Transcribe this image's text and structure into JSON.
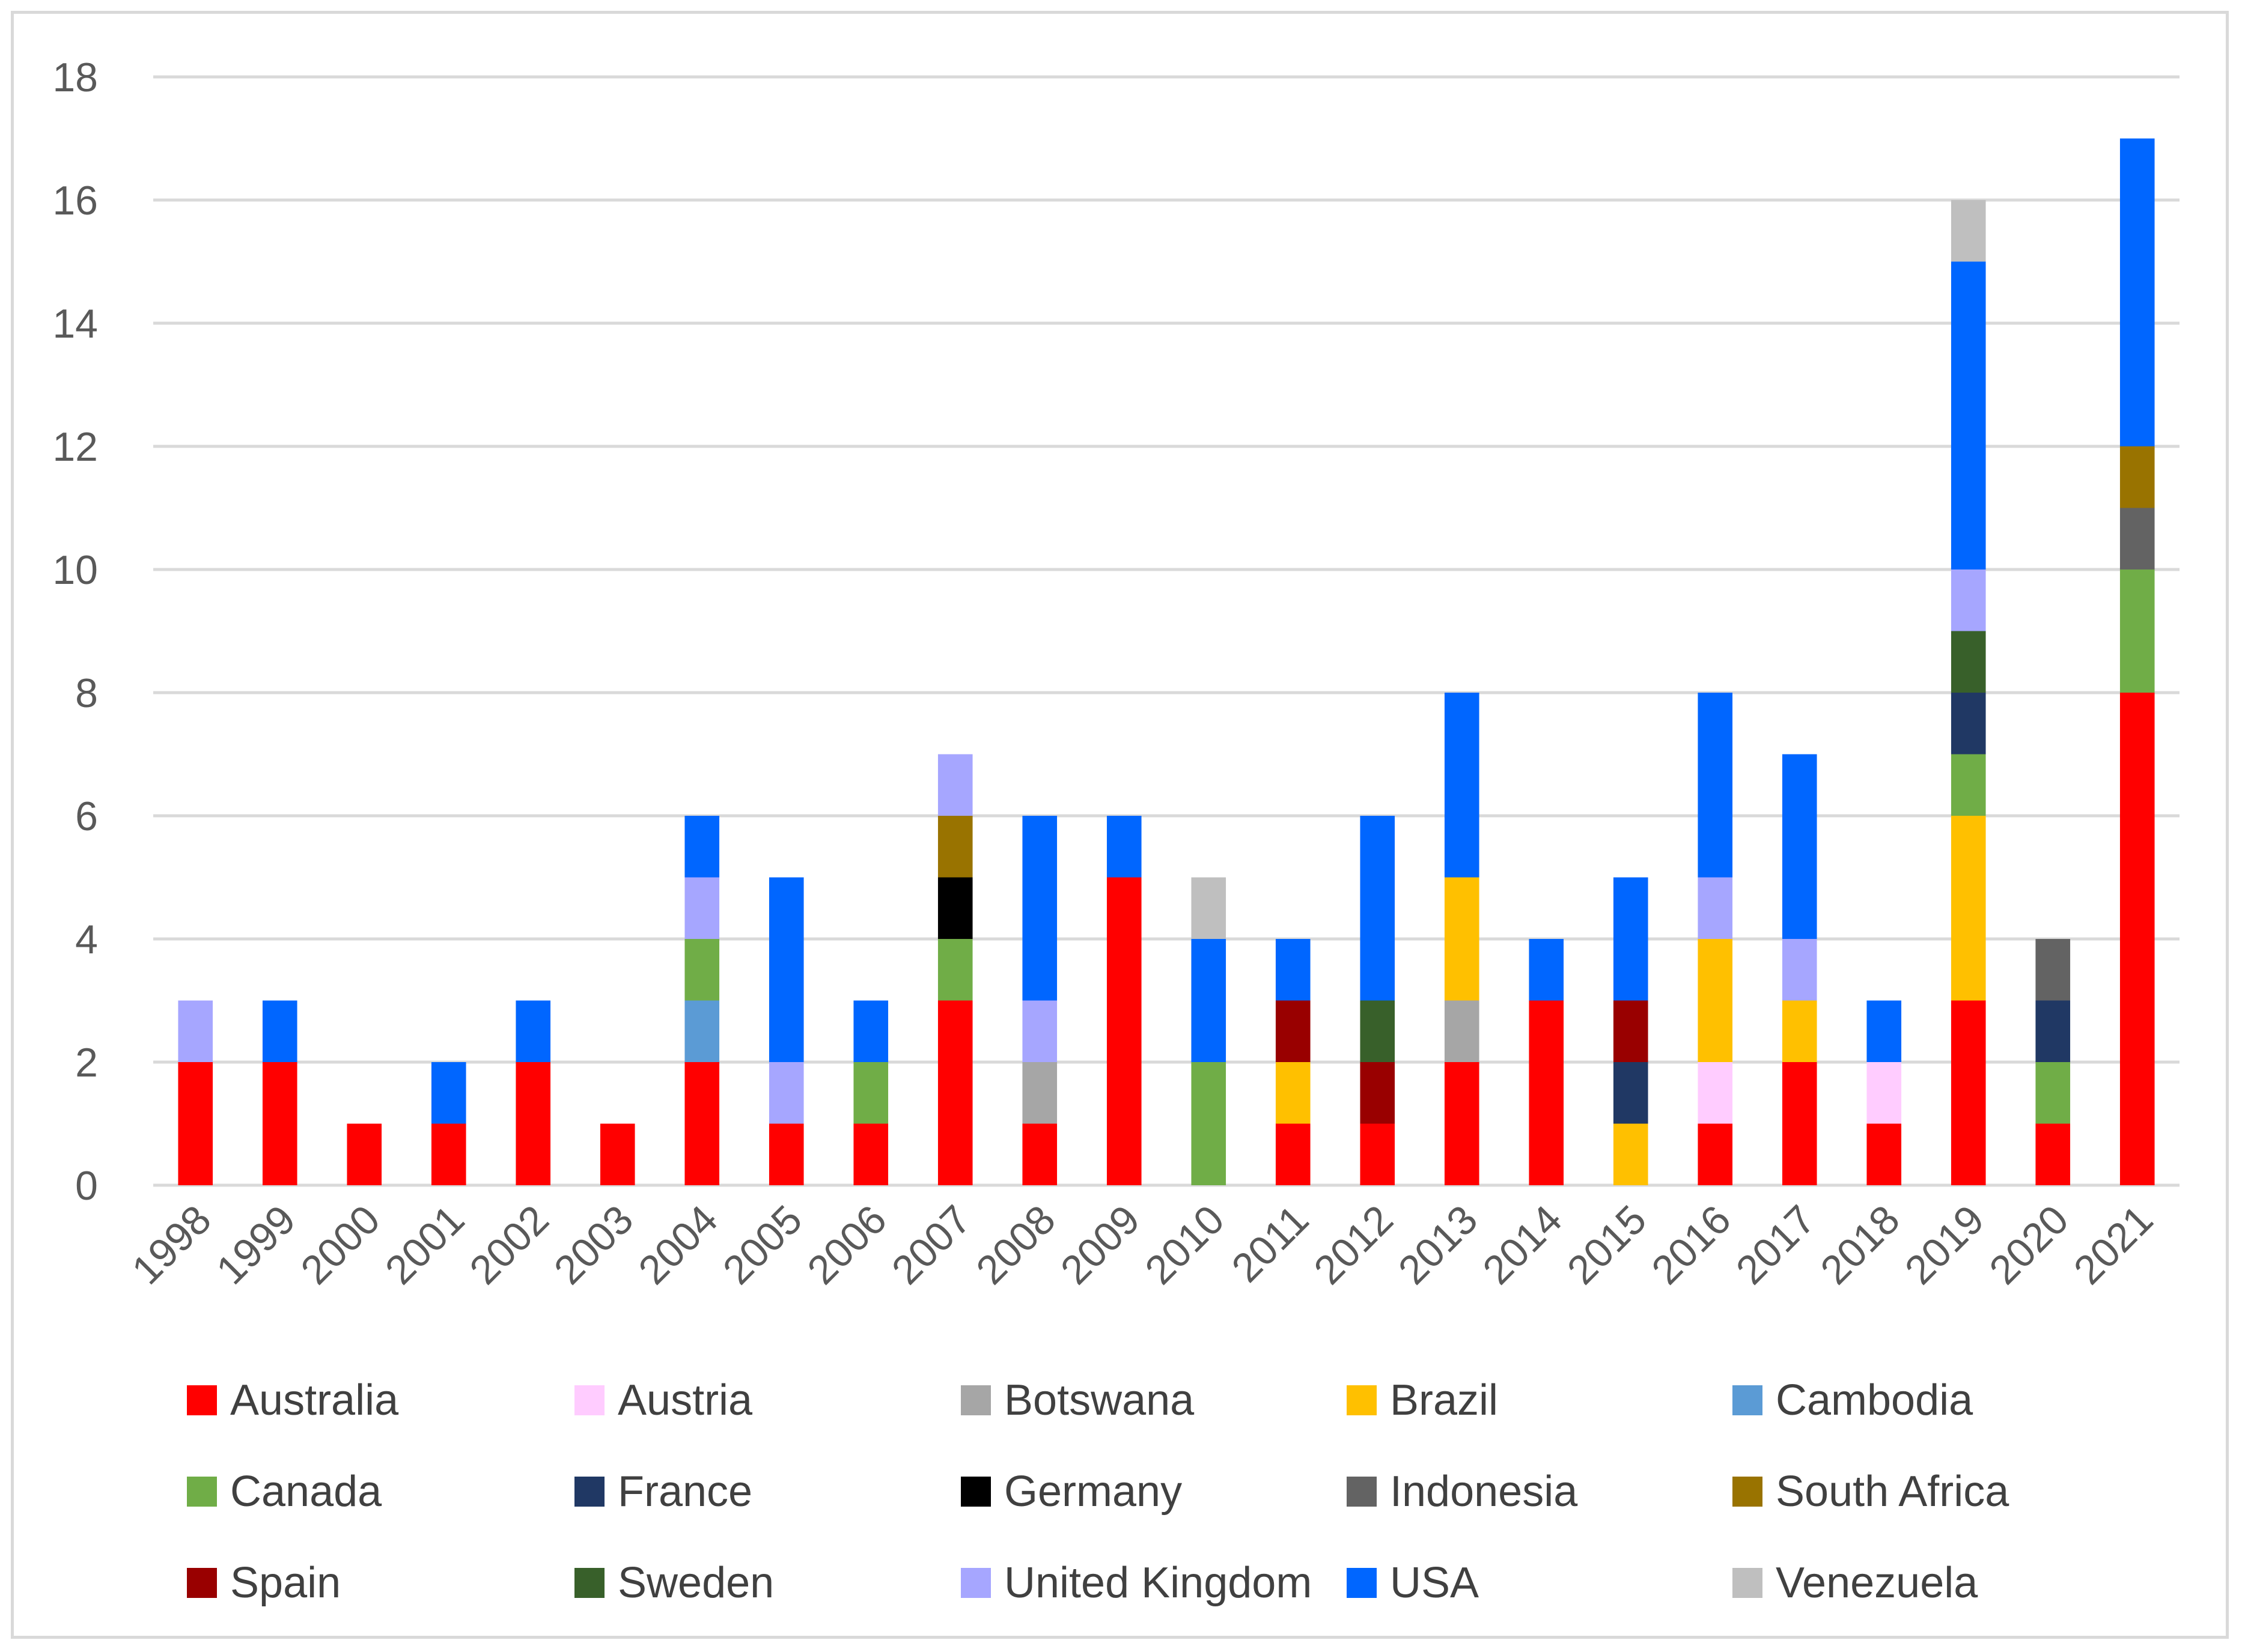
{
  "chart_data": {
    "type": "bar",
    "stacked": true,
    "title": "",
    "xlabel": "",
    "ylabel": "",
    "ylim": [
      0,
      18
    ],
    "yticks": [
      0,
      2,
      4,
      6,
      8,
      10,
      12,
      14,
      16,
      18
    ],
    "grid": true,
    "legend_position": "bottom",
    "categories": [
      "1998",
      "1999",
      "2000",
      "2001",
      "2002",
      "2003",
      "2004",
      "2005",
      "2006",
      "2007",
      "2008",
      "2009",
      "2010",
      "2011",
      "2012",
      "2013",
      "2014",
      "2015",
      "2016",
      "2017",
      "2018",
      "2019",
      "2020",
      "2021"
    ],
    "series": [
      {
        "name": "Australia",
        "color": "#ff0000",
        "values": [
          2,
          2,
          1,
          1,
          2,
          1,
          2,
          1,
          1,
          3,
          1,
          5,
          0,
          1,
          1,
          2,
          3,
          0,
          1,
          2,
          1,
          3,
          1,
          8
        ]
      },
      {
        "name": "Austria",
        "color": "#ffccff",
        "values": [
          0,
          0,
          0,
          0,
          0,
          0,
          0,
          0,
          0,
          0,
          0,
          0,
          0,
          0,
          0,
          0,
          0,
          0,
          1,
          0,
          1,
          0,
          0,
          0
        ]
      },
      {
        "name": "Botswana",
        "color": "#a6a6a6",
        "values": [
          0,
          0,
          0,
          0,
          0,
          0,
          0,
          0,
          0,
          0,
          1,
          0,
          0,
          0,
          0,
          1,
          0,
          0,
          0,
          0,
          0,
          0,
          0,
          0
        ]
      },
      {
        "name": "Brazil",
        "color": "#ffc000",
        "values": [
          0,
          0,
          0,
          0,
          0,
          0,
          0,
          0,
          0,
          0,
          0,
          0,
          0,
          1,
          0,
          2,
          0,
          1,
          2,
          1,
          0,
          3,
          0,
          0
        ]
      },
      {
        "name": "Cambodia",
        "color": "#5b9bd5",
        "values": [
          0,
          0,
          0,
          0,
          0,
          0,
          1,
          0,
          0,
          0,
          0,
          0,
          0,
          0,
          0,
          0,
          0,
          0,
          0,
          0,
          0,
          0,
          0,
          0
        ]
      },
      {
        "name": "Canada",
        "color": "#70ad47",
        "values": [
          0,
          0,
          0,
          0,
          0,
          0,
          1,
          0,
          1,
          1,
          0,
          0,
          2,
          0,
          0,
          0,
          0,
          0,
          0,
          0,
          0,
          1,
          1,
          2
        ]
      },
      {
        "name": "France",
        "color": "#203864",
        "values": [
          0,
          0,
          0,
          0,
          0,
          0,
          0,
          0,
          0,
          0,
          0,
          0,
          0,
          0,
          0,
          0,
          0,
          1,
          0,
          0,
          0,
          1,
          1,
          0
        ]
      },
      {
        "name": "Germany",
        "color": "#000000",
        "values": [
          0,
          0,
          0,
          0,
          0,
          0,
          0,
          0,
          0,
          1,
          0,
          0,
          0,
          0,
          0,
          0,
          0,
          0,
          0,
          0,
          0,
          0,
          0,
          0
        ]
      },
      {
        "name": "Indonesia",
        "color": "#636363",
        "values": [
          0,
          0,
          0,
          0,
          0,
          0,
          0,
          0,
          0,
          0,
          0,
          0,
          0,
          0,
          0,
          0,
          0,
          0,
          0,
          0,
          0,
          0,
          1,
          1
        ]
      },
      {
        "name": "South Africa",
        "color": "#997300",
        "values": [
          0,
          0,
          0,
          0,
          0,
          0,
          0,
          0,
          0,
          1,
          0,
          0,
          0,
          0,
          0,
          0,
          0,
          0,
          0,
          0,
          0,
          0,
          0,
          1
        ]
      },
      {
        "name": "Spain",
        "color": "#990000",
        "values": [
          0,
          0,
          0,
          0,
          0,
          0,
          0,
          0,
          0,
          0,
          0,
          0,
          0,
          1,
          1,
          0,
          0,
          1,
          0,
          0,
          0,
          0,
          0,
          0
        ]
      },
      {
        "name": "Sweden",
        "color": "#38602a",
        "values": [
          0,
          0,
          0,
          0,
          0,
          0,
          0,
          0,
          0,
          0,
          0,
          0,
          0,
          0,
          1,
          0,
          0,
          0,
          0,
          0,
          0,
          1,
          0,
          0
        ]
      },
      {
        "name": "United Kingdom",
        "color": "#a6a6ff",
        "values": [
          1,
          0,
          0,
          0,
          0,
          0,
          1,
          1,
          0,
          1,
          1,
          0,
          0,
          0,
          0,
          0,
          0,
          0,
          1,
          1,
          0,
          1,
          0,
          0
        ]
      },
      {
        "name": "USA",
        "color": "#0066ff",
        "values": [
          0,
          1,
          0,
          1,
          1,
          0,
          1,
          3,
          1,
          0,
          3,
          1,
          2,
          1,
          3,
          3,
          1,
          2,
          3,
          3,
          1,
          5,
          0,
          5
        ]
      },
      {
        "name": "Venezuela",
        "color": "#bfbfbf",
        "values": [
          0,
          0,
          0,
          0,
          0,
          0,
          0,
          0,
          0,
          0,
          0,
          0,
          1,
          0,
          0,
          0,
          0,
          0,
          0,
          0,
          0,
          1,
          0,
          0
        ]
      }
    ]
  }
}
